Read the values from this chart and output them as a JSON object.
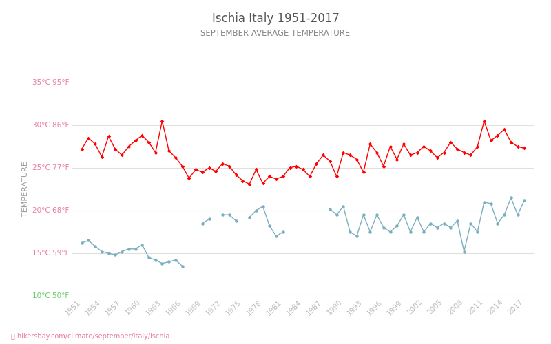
{
  "title": "Ischia Italy 1951-2017",
  "subtitle": "SEPTEMBER AVERAGE TEMPERATURE",
  "ylabel": "TEMPERATURE",
  "footer": "hikersbay.com/climate/september/italy/ischia",
  "years": [
    1951,
    1952,
    1953,
    1954,
    1955,
    1956,
    1957,
    1958,
    1959,
    1960,
    1961,
    1962,
    1963,
    1964,
    1965,
    1966,
    1967,
    1968,
    1969,
    1970,
    1971,
    1972,
    1973,
    1974,
    1975,
    1976,
    1977,
    1978,
    1979,
    1980,
    1981,
    1982,
    1983,
    1984,
    1985,
    1986,
    1987,
    1988,
    1989,
    1990,
    1991,
    1992,
    1993,
    1994,
    1995,
    1996,
    1997,
    1998,
    1999,
    2000,
    2001,
    2002,
    2003,
    2004,
    2005,
    2006,
    2007,
    2008,
    2009,
    2010,
    2011,
    2012,
    2013,
    2014,
    2015,
    2016,
    2017
  ],
  "day_temps": [
    27.2,
    28.5,
    27.8,
    26.3,
    28.7,
    27.2,
    26.5,
    27.5,
    28.2,
    28.8,
    28.0,
    26.8,
    30.5,
    27.0,
    26.2,
    25.2,
    23.8,
    24.8,
    24.5,
    25.0,
    24.6,
    25.5,
    25.2,
    24.2,
    23.5,
    23.1,
    24.8,
    23.2,
    24.0,
    23.7,
    24.0,
    25.0,
    25.2,
    24.8,
    24.0,
    25.5,
    26.5,
    25.8,
    24.0,
    26.8,
    26.5,
    26.0,
    24.5,
    27.8,
    26.8,
    25.2,
    27.5,
    26.0,
    27.8,
    26.5,
    26.8,
    27.5,
    27.0,
    26.2,
    26.8,
    28.0,
    27.2,
    26.8,
    26.5,
    27.5,
    30.5,
    28.2,
    28.8,
    29.5,
    28.0,
    27.5,
    27.3
  ],
  "night_temps": [
    16.2,
    16.5,
    15.8,
    15.2,
    15.0,
    14.8,
    15.2,
    15.5,
    15.5,
    16.0,
    14.5,
    14.2,
    13.8,
    14.0,
    14.2,
    13.5,
    null,
    null,
    18.5,
    19.0,
    null,
    19.5,
    19.5,
    18.8,
    null,
    19.2,
    20.0,
    20.5,
    18.2,
    17.0,
    17.5,
    null,
    null,
    null,
    null,
    null,
    null,
    20.2,
    19.5,
    20.5,
    17.5,
    17.0,
    19.5,
    17.5,
    19.5,
    18.0,
    17.5,
    18.2,
    19.5,
    17.5,
    19.2,
    17.5,
    18.5,
    18.0,
    18.5,
    18.0,
    18.8,
    15.2,
    18.5,
    17.5,
    21.0,
    20.8,
    18.5,
    19.5,
    21.5,
    19.5,
    21.2
  ],
  "ylim_min": 10,
  "ylim_max": 35,
  "yticks_c": [
    10,
    15,
    20,
    25,
    30,
    35
  ],
  "yticks_f": [
    50,
    59,
    68,
    77,
    86,
    95
  ],
  "day_color": "#ff0000",
  "night_color": "#7aafc0",
  "title_color": "#555555",
  "subtitle_color": "#888888",
  "ylabel_color": "#999999",
  "ytick_color_pink": "#e87ca0",
  "ytick_color_green": "#66cc66",
  "background_color": "#ffffff",
  "grid_color": "#e0e0e0",
  "xtick_color": "#bbbbbb",
  "footer_color": "#e87ca0",
  "legend_night_color": "#7aafc0",
  "legend_day_color": "#ff0000",
  "xtick_years": [
    1951,
    1954,
    1957,
    1960,
    1963,
    1966,
    1969,
    1972,
    1975,
    1978,
    1981,
    1984,
    1987,
    1990,
    1993,
    1996,
    1999,
    2002,
    2005,
    2008,
    2011,
    2014,
    2017
  ]
}
